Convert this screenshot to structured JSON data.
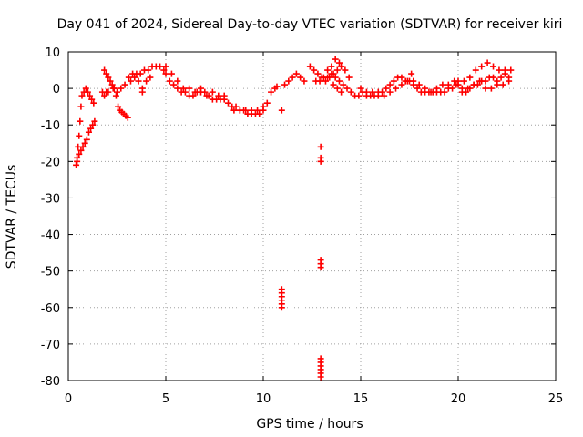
{
  "chart_data": {
    "type": "scatter",
    "title": "Day 041 of 2024, Sidereal Day-to-day VTEC variation (SDTVAR) for receiver kiri",
    "xlabel": "GPS time / hours",
    "ylabel": "SDTVAR / TECUs",
    "xlim": [
      0,
      25
    ],
    "ylim": [
      -80,
      10
    ],
    "xticks": [
      0,
      5,
      10,
      15,
      20,
      25
    ],
    "yticks": [
      10,
      0,
      -10,
      -20,
      -30,
      -40,
      -50,
      -60,
      -70,
      -80
    ],
    "grid": true,
    "marker": "+",
    "color": "#ff0000",
    "series": [
      {
        "name": "SDTVAR",
        "points": [
          [
            0.4,
            -21
          ],
          [
            0.45,
            -19
          ],
          [
            0.5,
            -16
          ],
          [
            0.55,
            -13
          ],
          [
            0.6,
            -9
          ],
          [
            0.65,
            -5
          ],
          [
            0.7,
            -2
          ],
          [
            0.8,
            -1
          ],
          [
            0.9,
            0
          ],
          [
            1.0,
            -1
          ],
          [
            1.1,
            -2
          ],
          [
            1.2,
            -3
          ],
          [
            1.3,
            -4
          ],
          [
            0.45,
            -20
          ],
          [
            0.55,
            -18
          ],
          [
            0.65,
            -17
          ],
          [
            0.75,
            -16
          ],
          [
            0.85,
            -15
          ],
          [
            0.95,
            -14
          ],
          [
            1.05,
            -12
          ],
          [
            1.15,
            -11
          ],
          [
            1.25,
            -10
          ],
          [
            1.35,
            -9
          ],
          [
            1.85,
            5
          ],
          [
            1.95,
            4
          ],
          [
            2.05,
            3
          ],
          [
            2.15,
            2
          ],
          [
            2.25,
            1
          ],
          [
            2.35,
            0
          ],
          [
            2.45,
            -2
          ],
          [
            2.55,
            -5
          ],
          [
            2.65,
            -6
          ],
          [
            2.75,
            -6.5
          ],
          [
            2.85,
            -7
          ],
          [
            2.95,
            -7.5
          ],
          [
            3.05,
            -8
          ],
          [
            1.75,
            -1
          ],
          [
            1.85,
            -2
          ],
          [
            1.95,
            -1
          ],
          [
            2.05,
            -1
          ],
          [
            2.3,
            0
          ],
          [
            2.5,
            -1
          ],
          [
            2.7,
            0
          ],
          [
            2.9,
            1
          ],
          [
            3.1,
            3
          ],
          [
            3.3,
            4
          ],
          [
            3.5,
            4
          ],
          [
            3.7,
            4
          ],
          [
            3.9,
            5
          ],
          [
            4.1,
            5
          ],
          [
            4.3,
            6
          ],
          [
            4.5,
            6
          ],
          [
            4.7,
            6
          ],
          [
            4.9,
            5
          ],
          [
            3.2,
            2
          ],
          [
            3.4,
            3
          ],
          [
            3.6,
            2
          ],
          [
            3.8,
            0
          ],
          [
            3.8,
            -1
          ],
          [
            4.0,
            2
          ],
          [
            4.2,
            3
          ],
          [
            5.0,
            4
          ],
          [
            5.2,
            2
          ],
          [
            5.4,
            1
          ],
          [
            5.6,
            0
          ],
          [
            5.8,
            -1
          ],
          [
            6.0,
            -1
          ],
          [
            6.2,
            -2
          ],
          [
            6.4,
            -2
          ],
          [
            6.6,
            -1
          ],
          [
            6.8,
            -1
          ],
          [
            7.0,
            -1
          ],
          [
            7.2,
            -2
          ],
          [
            7.4,
            -3
          ],
          [
            7.6,
            -3
          ],
          [
            7.8,
            -3
          ],
          [
            8.0,
            -3
          ],
          [
            5.0,
            6
          ],
          [
            5.3,
            4
          ],
          [
            5.6,
            2
          ],
          [
            5.9,
            0
          ],
          [
            6.2,
            0
          ],
          [
            6.5,
            -1
          ],
          [
            6.8,
            0
          ],
          [
            7.1,
            -2
          ],
          [
            7.4,
            -1
          ],
          [
            7.7,
            -2
          ],
          [
            8.0,
            -2
          ],
          [
            8.2,
            -4
          ],
          [
            8.4,
            -5
          ],
          [
            8.6,
            -5
          ],
          [
            8.8,
            -6
          ],
          [
            9.0,
            -6
          ],
          [
            9.2,
            -7
          ],
          [
            9.4,
            -7
          ],
          [
            9.6,
            -7
          ],
          [
            9.8,
            -7
          ],
          [
            10.0,
            -5
          ],
          [
            10.2,
            -4
          ],
          [
            10.4,
            -1
          ],
          [
            10.6,
            0
          ],
          [
            10.7,
            0.5
          ],
          [
            8.5,
            -6
          ],
          [
            8.8,
            -6
          ],
          [
            9.1,
            -6
          ],
          [
            9.4,
            -6
          ],
          [
            9.7,
            -6
          ],
          [
            10.0,
            -6
          ],
          [
            10.95,
            -6
          ],
          [
            11.1,
            1
          ],
          [
            11.3,
            2
          ],
          [
            11.5,
            3
          ],
          [
            11.7,
            4
          ],
          [
            11.9,
            3
          ],
          [
            12.1,
            2
          ],
          [
            10.95,
            -55
          ],
          [
            10.95,
            -56
          ],
          [
            10.95,
            -57
          ],
          [
            10.95,
            -58
          ],
          [
            10.95,
            -59
          ],
          [
            10.95,
            -60
          ],
          [
            12.7,
            2
          ],
          [
            12.9,
            2
          ],
          [
            13.1,
            3
          ],
          [
            13.3,
            3
          ],
          [
            13.5,
            4
          ],
          [
            13.7,
            3
          ],
          [
            13.9,
            2
          ],
          [
            14.1,
            1
          ],
          [
            14.3,
            0
          ],
          [
            14.5,
            -1
          ],
          [
            14.7,
            -2
          ],
          [
            14.9,
            -2
          ],
          [
            12.4,
            6
          ],
          [
            12.6,
            5
          ],
          [
            12.8,
            4
          ],
          [
            13.0,
            3
          ],
          [
            13.2,
            2
          ],
          [
            13.4,
            3
          ],
          [
            13.6,
            4
          ],
          [
            13.8,
            5
          ],
          [
            14.0,
            6
          ],
          [
            14.2,
            5
          ],
          [
            14.4,
            3
          ],
          [
            13.3,
            5
          ],
          [
            13.5,
            6
          ],
          [
            13.7,
            8
          ],
          [
            13.9,
            7
          ],
          [
            13.6,
            1
          ],
          [
            13.8,
            0
          ],
          [
            14.0,
            -1
          ],
          [
            12.95,
            -16
          ],
          [
            12.95,
            -19
          ],
          [
            12.95,
            -20
          ],
          [
            12.95,
            -47
          ],
          [
            12.95,
            -48
          ],
          [
            12.95,
            -49
          ],
          [
            12.95,
            -74
          ],
          [
            12.95,
            -75
          ],
          [
            12.95,
            -76
          ],
          [
            12.95,
            -77
          ],
          [
            12.95,
            -78
          ],
          [
            12.95,
            -79
          ],
          [
            15.1,
            -1
          ],
          [
            15.3,
            -2
          ],
          [
            15.5,
            -2
          ],
          [
            15.7,
            -2
          ],
          [
            15.9,
            -1
          ],
          [
            16.1,
            -1
          ],
          [
            16.3,
            0
          ],
          [
            16.5,
            1
          ],
          [
            16.7,
            2
          ],
          [
            16.9,
            3
          ],
          [
            17.1,
            3
          ],
          [
            17.3,
            2
          ],
          [
            17.5,
            2
          ],
          [
            17.7,
            1
          ],
          [
            17.9,
            0
          ],
          [
            18.1,
            -1
          ],
          [
            18.3,
            -1
          ],
          [
            18.5,
            -1
          ],
          [
            18.7,
            -1
          ],
          [
            18.9,
            -1
          ],
          [
            19.1,
            -1
          ],
          [
            19.3,
            -1
          ],
          [
            19.5,
            0
          ],
          [
            19.7,
            0
          ],
          [
            19.9,
            1
          ],
          [
            15.0,
            0
          ],
          [
            15.3,
            -1
          ],
          [
            15.6,
            -1
          ],
          [
            15.9,
            -2
          ],
          [
            16.2,
            -2
          ],
          [
            16.5,
            -1
          ],
          [
            16.8,
            0
          ],
          [
            17.1,
            1
          ],
          [
            17.4,
            2
          ],
          [
            17.7,
            2
          ],
          [
            18.0,
            1
          ],
          [
            18.3,
            0
          ],
          [
            18.6,
            -1
          ],
          [
            18.9,
            0
          ],
          [
            19.2,
            1
          ],
          [
            17.6,
            4
          ],
          [
            19.5,
            1
          ],
          [
            19.8,
            2
          ],
          [
            20.0,
            2
          ],
          [
            20.2,
            0
          ],
          [
            20.4,
            -1
          ],
          [
            20.6,
            0
          ],
          [
            20.8,
            1
          ],
          [
            21.0,
            1
          ],
          [
            21.2,
            2
          ],
          [
            21.4,
            2
          ],
          [
            21.6,
            3
          ],
          [
            21.8,
            3
          ],
          [
            22.0,
            2
          ],
          [
            22.2,
            3
          ],
          [
            22.4,
            4
          ],
          [
            22.6,
            3
          ],
          [
            20.0,
            1
          ],
          [
            20.3,
            2
          ],
          [
            20.6,
            3
          ],
          [
            20.9,
            5
          ],
          [
            21.2,
            6
          ],
          [
            21.5,
            7
          ],
          [
            21.8,
            6
          ],
          [
            22.1,
            5
          ],
          [
            22.4,
            5
          ],
          [
            22.7,
            5
          ],
          [
            20.2,
            -1
          ],
          [
            20.5,
            0
          ],
          [
            20.8,
            1
          ],
          [
            21.1,
            2
          ],
          [
            21.4,
            0
          ],
          [
            21.7,
            0
          ],
          [
            22.0,
            1
          ],
          [
            22.3,
            1
          ],
          [
            22.6,
            2
          ]
        ]
      }
    ]
  }
}
